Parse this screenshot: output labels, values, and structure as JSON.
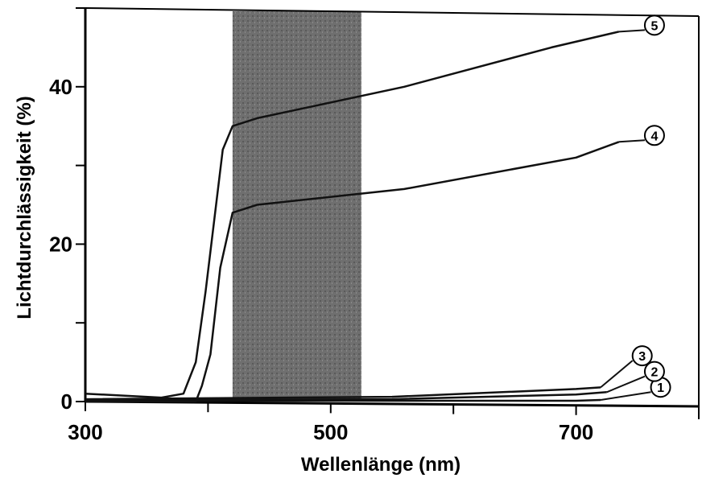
{
  "chart_data": {
    "type": "line",
    "title": "",
    "xlabel": "Wellenlänge (nm)",
    "ylabel": "Lichtdurchlässigkeit (%)",
    "xlim": [
      300,
      800
    ],
    "ylim": [
      0,
      50
    ],
    "x_ticks": [
      300,
      400,
      500,
      600,
      700,
      800
    ],
    "x_tick_labels": [
      "300",
      "",
      "500",
      "",
      "700",
      ""
    ],
    "y_ticks": [
      0,
      10,
      20,
      30,
      40,
      50
    ],
    "y_tick_labels": [
      "0",
      "",
      "20",
      "",
      "40",
      ""
    ],
    "grid": false,
    "shaded_band": {
      "x_start": 420,
      "x_end": 525,
      "color": "#6f6f6f"
    },
    "series": [
      {
        "name": "1",
        "x": [
          300,
          550,
          700,
          720
        ],
        "y": [
          0.1,
          0.1,
          0.1,
          0.2
        ],
        "label_at": [
          740,
          1
        ]
      },
      {
        "name": "2",
        "x": [
          300,
          550,
          700,
          725
        ],
        "y": [
          0.2,
          0.3,
          0.9,
          1.2
        ],
        "label_at": [
          735,
          3
        ]
      },
      {
        "name": "3",
        "x": [
          300,
          550,
          700,
          720
        ],
        "y": [
          0.3,
          0.6,
          1.6,
          1.8
        ],
        "label_at": [
          725,
          5
        ]
      },
      {
        "name": "4",
        "x": [
          300,
          390,
          395,
          402,
          410,
          420,
          440,
          560,
          700,
          735
        ],
        "y": [
          0,
          0,
          2,
          6,
          17,
          24,
          25,
          27,
          31,
          33
        ],
        "label_at": [
          735,
          33
        ]
      },
      {
        "name": "5",
        "x": [
          300,
          362,
          380,
          390,
          398,
          412,
          420,
          440,
          560,
          680,
          735
        ],
        "y": [
          1,
          0.5,
          1,
          5,
          14,
          32,
          35,
          36,
          40,
          45,
          47
        ],
        "label_at": [
          735,
          47
        ]
      }
    ]
  }
}
